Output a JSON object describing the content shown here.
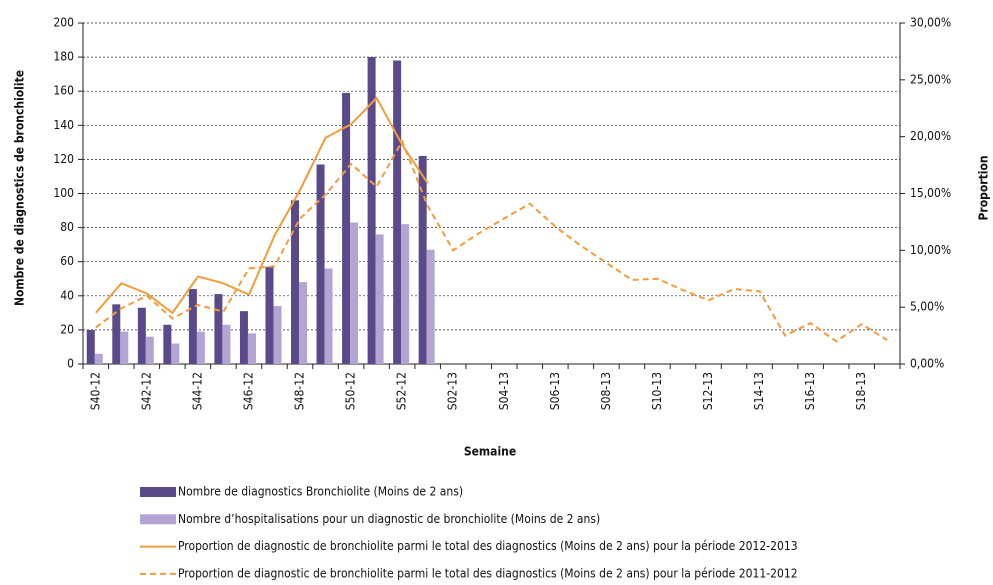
{
  "chart_data": {
    "type": "bar",
    "x_label": "Semaine",
    "y_label": "Nombre de diagnostics de bronchiolite",
    "y2_label": "Proportion",
    "categories": [
      "S40-12",
      null,
      "S42-12",
      null,
      "S44-12",
      null,
      "S46-12",
      null,
      "S48-12",
      null,
      "S50-12",
      null,
      "S52-12",
      null,
      "S02-13",
      null,
      "S04-13",
      null,
      "S06-13",
      null,
      "S08-13",
      null,
      "S10-13",
      null,
      "S12-13",
      null,
      "S14-13",
      null,
      "S16-13",
      null,
      "S18-13",
      null
    ],
    "ylim": [
      0,
      200
    ],
    "yticks": [
      0,
      20,
      40,
      60,
      80,
      100,
      120,
      140,
      160,
      180,
      200
    ],
    "y2lim": [
      0,
      30
    ],
    "y2ticks": [
      {
        "value": 0,
        "label": "0,00%"
      },
      {
        "value": 5,
        "label": "5,00%"
      },
      {
        "value": 10,
        "label": "10,00%"
      },
      {
        "value": 15,
        "label": "15,00%"
      },
      {
        "value": 20,
        "label": "20,00%"
      },
      {
        "value": 25,
        "label": "25,00%"
      },
      {
        "value": 30,
        "label": "30,00%"
      }
    ],
    "grid": true,
    "series": [
      {
        "name": "Nombre de diagnostics Bronchiolite (Moins de 2 ans)",
        "type": "bar",
        "color": "#5b4a8a",
        "values": [
          20,
          35,
          33,
          23,
          44,
          41,
          31,
          57,
          96,
          117,
          159,
          180,
          178,
          122,
          null,
          null,
          null,
          null,
          null,
          null,
          null,
          null,
          null,
          null,
          null,
          null,
          null,
          null,
          null,
          null,
          null,
          null
        ]
      },
      {
        "name": "Nombre d’hospitalisations pour un diagnostic de bronchiolite  (Moins de 2 ans)",
        "type": "bar",
        "color": "#b3a4d3",
        "values": [
          6,
          19,
          16,
          12,
          19,
          23,
          18,
          34,
          48,
          56,
          83,
          76,
          82,
          67,
          null,
          null,
          null,
          null,
          null,
          null,
          null,
          null,
          null,
          null,
          null,
          null,
          null,
          null,
          null,
          null,
          null,
          null
        ]
      },
      {
        "name": "Proportion de diagnostic de bronchiolite parmi le total des diagnostics (Moins de 2 ans) pour la période 2012-2013",
        "type": "line",
        "axis": "y2",
        "dashed": false,
        "color": "#f39c3c",
        "values": [
          4.5,
          7.1,
          6.2,
          4.5,
          7.7,
          7.1,
          6.1,
          11.3,
          15.3,
          19.9,
          21.1,
          23.4,
          19.3,
          15.9,
          null,
          null,
          null,
          null,
          null,
          null,
          null,
          null,
          null,
          null,
          null,
          null,
          null,
          null,
          null,
          null,
          null,
          null
        ]
      },
      {
        "name": "Proportion de diagnostic de bronchiolite parmi le total des diagnostics (Moins de 2 ans) pour la période 2011-2012",
        "type": "line",
        "axis": "y2",
        "dashed": true,
        "color": "#f39c3c",
        "values": [
          3.2,
          4.9,
          6.0,
          4.0,
          5.2,
          4.6,
          8.4,
          8.6,
          12.8,
          14.9,
          17.6,
          15.6,
          19.6,
          13.9,
          10.0,
          11.5,
          12.8,
          14.1,
          12.1,
          10.4,
          8.9,
          7.4,
          7.5,
          6.5,
          5.6,
          6.6,
          6.4,
          2.5,
          3.6,
          2.0,
          3.5,
          2.1
        ]
      }
    ]
  }
}
